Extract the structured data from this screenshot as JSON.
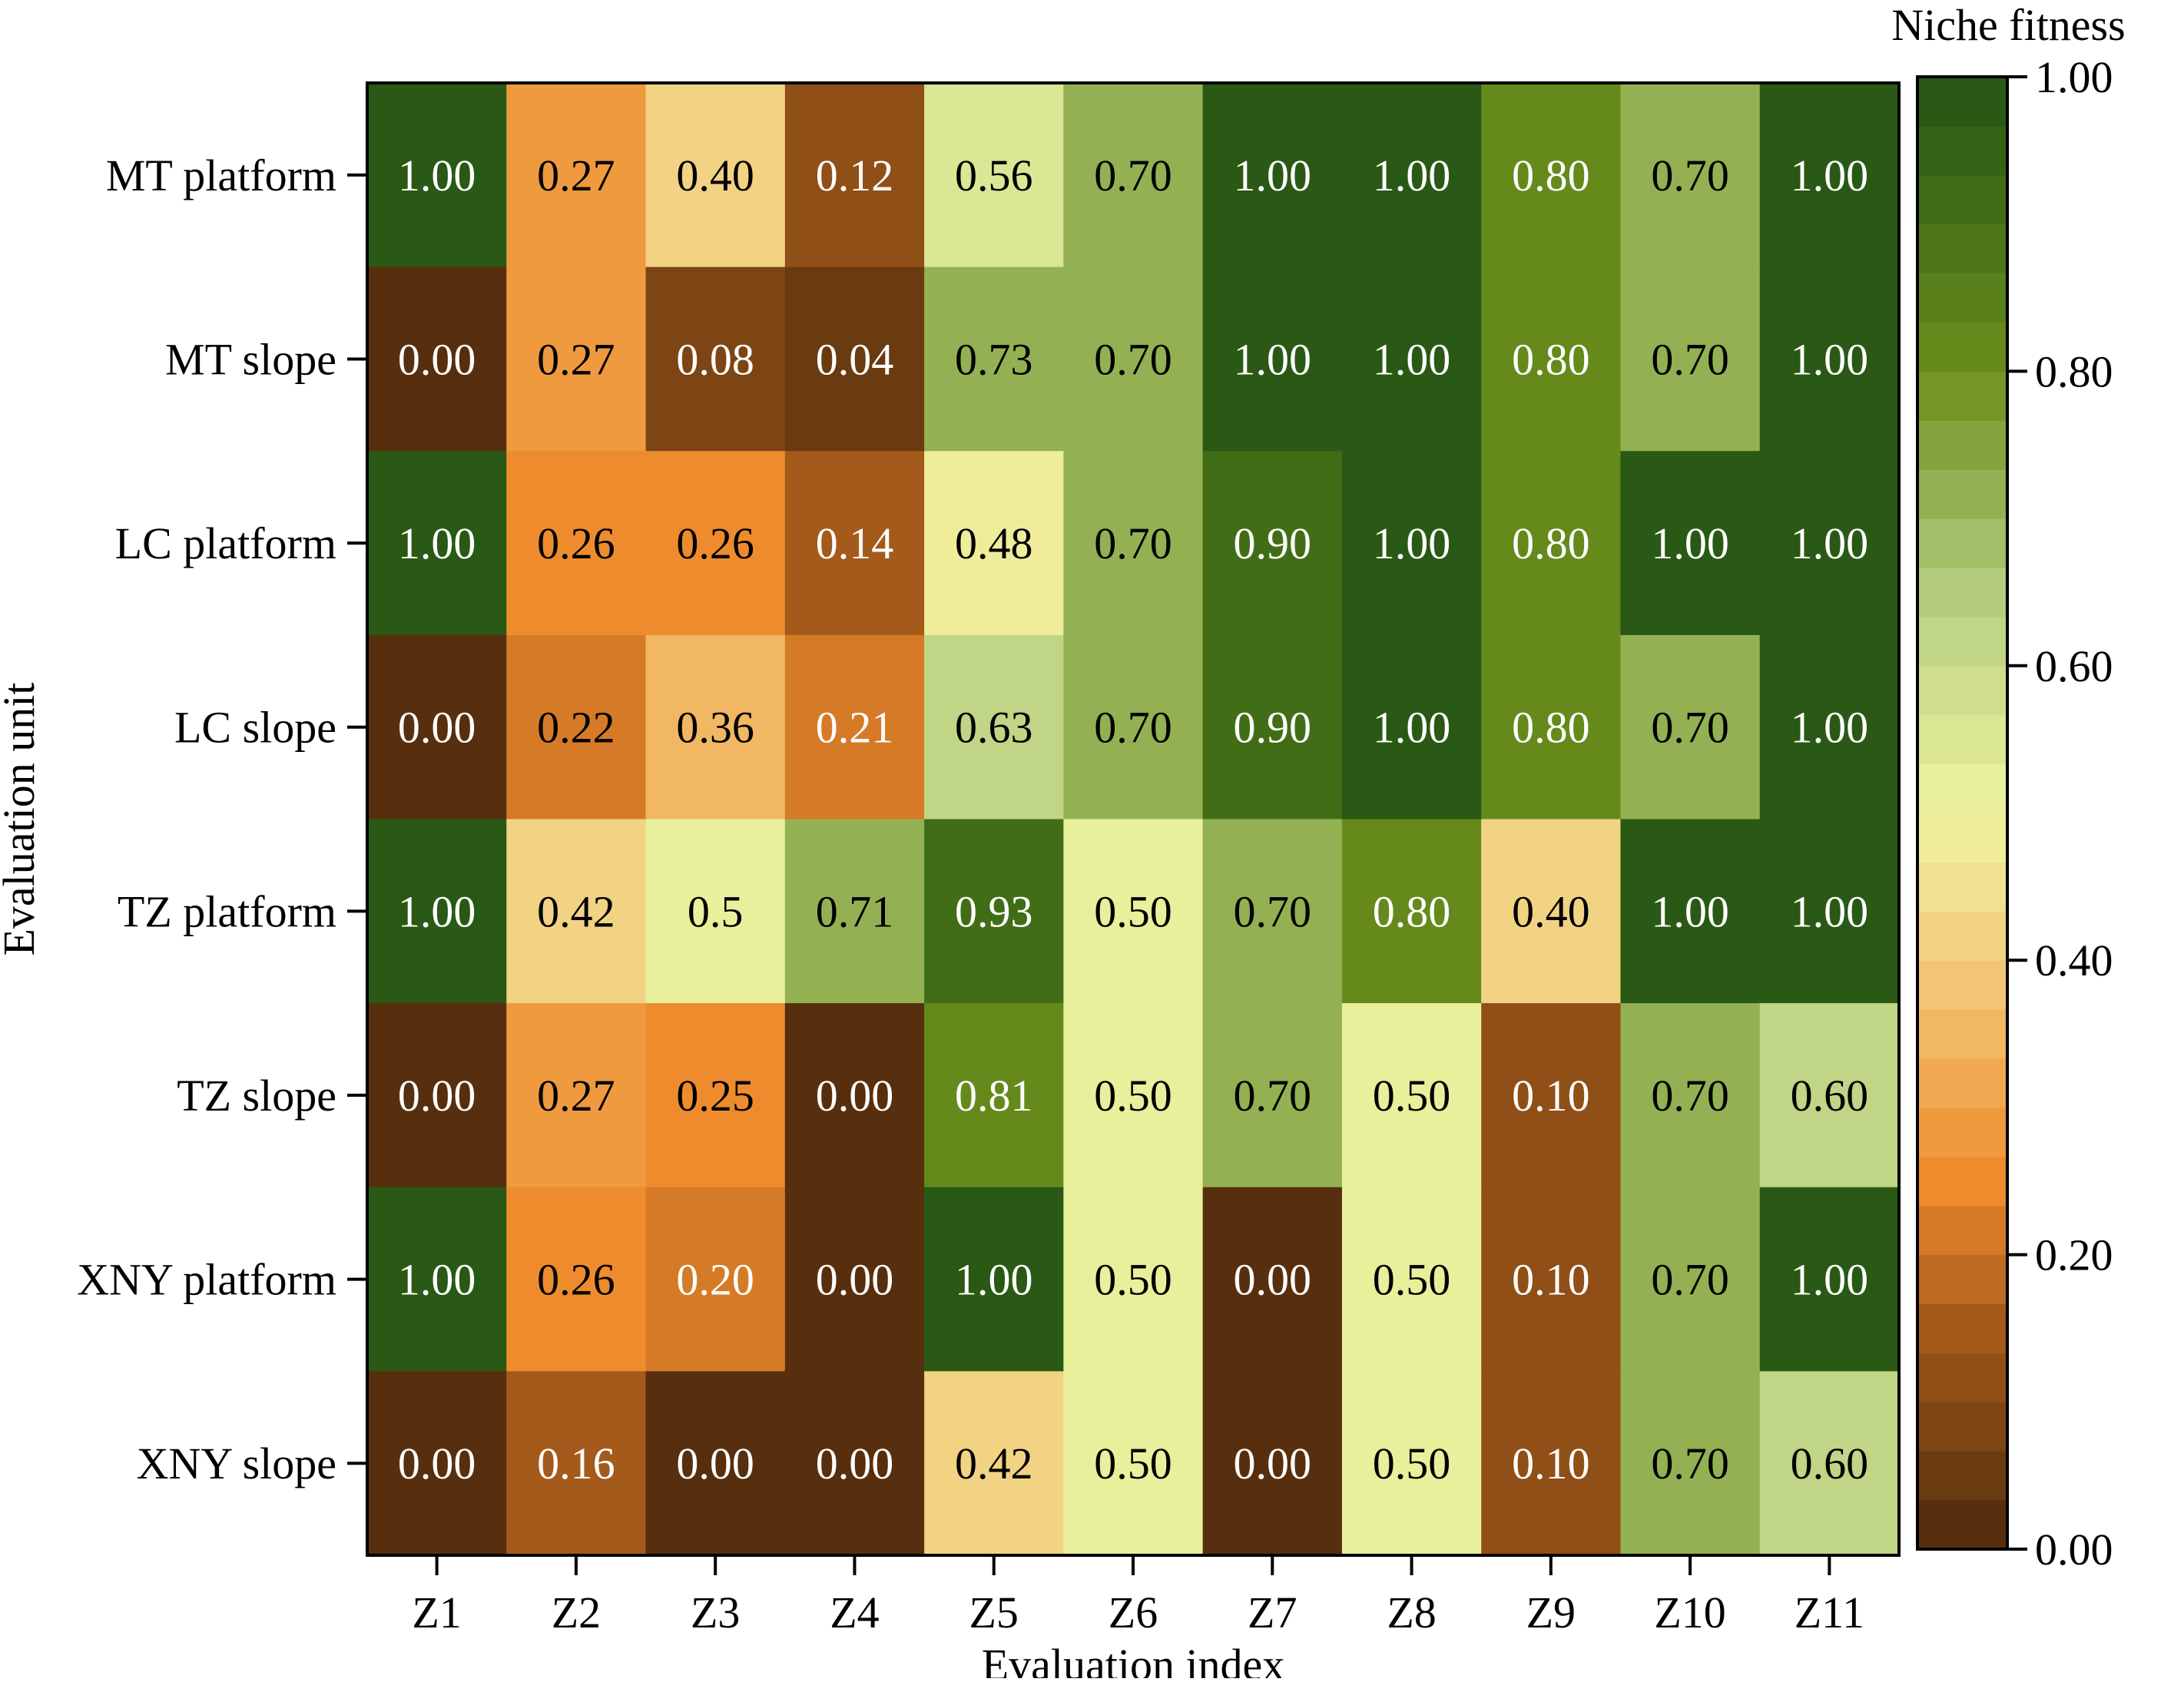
{
  "chart_data": {
    "type": "heatmap",
    "xlabel": "Evaluation index",
    "ylabel": "Evaluation unit",
    "x_categories": [
      "Z1",
      "Z2",
      "Z3",
      "Z4",
      "Z5",
      "Z6",
      "Z7",
      "Z8",
      "Z9",
      "Z10",
      "Z11"
    ],
    "y_categories": [
      "MT platform",
      "MT slope",
      "LC platform",
      "LC slope",
      "TZ platform",
      "TZ slope",
      "XNY platform",
      "XNY slope"
    ],
    "values": [
      [
        1.0,
        0.27,
        0.4,
        0.12,
        0.56,
        0.7,
        1.0,
        1.0,
        0.8,
        0.7,
        1.0
      ],
      [
        0.0,
        0.27,
        0.08,
        0.04,
        0.73,
        0.7,
        1.0,
        1.0,
        0.8,
        0.7,
        1.0
      ],
      [
        1.0,
        0.26,
        0.26,
        0.14,
        0.48,
        0.7,
        0.9,
        1.0,
        0.8,
        1.0,
        1.0
      ],
      [
        0.0,
        0.22,
        0.36,
        0.21,
        0.63,
        0.7,
        0.9,
        1.0,
        0.8,
        0.7,
        1.0
      ],
      [
        1.0,
        0.42,
        0.5,
        0.71,
        0.93,
        0.5,
        0.7,
        0.8,
        0.4,
        1.0,
        1.0
      ],
      [
        0.0,
        0.27,
        0.25,
        0.0,
        0.81,
        0.5,
        0.7,
        0.5,
        0.1,
        0.7,
        0.6
      ],
      [
        1.0,
        0.26,
        0.2,
        0.0,
        1.0,
        0.5,
        0.0,
        0.5,
        0.1,
        0.7,
        1.0
      ],
      [
        0.0,
        0.16,
        0.0,
        0.0,
        0.42,
        0.5,
        0.0,
        0.5,
        0.1,
        0.7,
        0.6
      ]
    ],
    "value_labels": [
      [
        "1.00",
        "0.27",
        "0.40",
        "0.12",
        "0.56",
        "0.70",
        "1.00",
        "1.00",
        "0.80",
        "0.70",
        "1.00"
      ],
      [
        "0.00",
        "0.27",
        "0.08",
        "0.04",
        "0.73",
        "0.70",
        "1.00",
        "1.00",
        "0.80",
        "0.70",
        "1.00"
      ],
      [
        "1.00",
        "0.26",
        "0.26",
        "0.14",
        "0.48",
        "0.70",
        "0.90",
        "1.00",
        "0.80",
        "1.00",
        "1.00"
      ],
      [
        "0.00",
        "0.22",
        "0.36",
        "0.21",
        "0.63",
        "0.70",
        "0.90",
        "1.00",
        "0.80",
        "0.70",
        "1.00"
      ],
      [
        "1.00",
        "0.42",
        "0.5",
        "0.71",
        "0.93",
        "0.50",
        "0.70",
        "0.80",
        "0.40",
        "1.00",
        "1.00"
      ],
      [
        "0.00",
        "0.27",
        "0.25",
        "0.00",
        "0.81",
        "0.50",
        "0.70",
        "0.50",
        "0.10",
        "0.70",
        "0.60"
      ],
      [
        "1.00",
        "0.26",
        "0.20",
        "0.00",
        "1.00",
        "0.50",
        "0.00",
        "0.50",
        "0.10",
        "0.70",
        "1.00"
      ],
      [
        "0.00",
        "0.16",
        "0.00",
        "0.00",
        "0.42",
        "0.50",
        "0.00",
        "0.50",
        "0.10",
        "0.70",
        "0.60"
      ]
    ],
    "colorbar": {
      "title": "Niche fitness",
      "range": [
        0,
        1
      ],
      "ticks": [
        0.0,
        0.2,
        0.4,
        0.6,
        0.8,
        1.0
      ],
      "tick_labels": [
        "0.00",
        "0.20",
        "0.40",
        "0.60",
        "0.80",
        "1.00"
      ],
      "levels": 30,
      "colormap_stops": [
        {
          "v": 0.0,
          "color": "#4e2a0c"
        },
        {
          "v": 0.15,
          "color": "#a35a1a"
        },
        {
          "v": 0.25,
          "color": "#ee8c2d"
        },
        {
          "v": 0.4,
          "color": "#f3cc7e"
        },
        {
          "v": 0.5,
          "color": "#eff4a0"
        },
        {
          "v": 0.65,
          "color": "#b3cc7e"
        },
        {
          "v": 0.8,
          "color": "#6b8f1c"
        },
        {
          "v": 1.0,
          "color": "#235414"
        }
      ],
      "dark_text_color": "#ffffff",
      "light_text_color": "#000000"
    }
  }
}
